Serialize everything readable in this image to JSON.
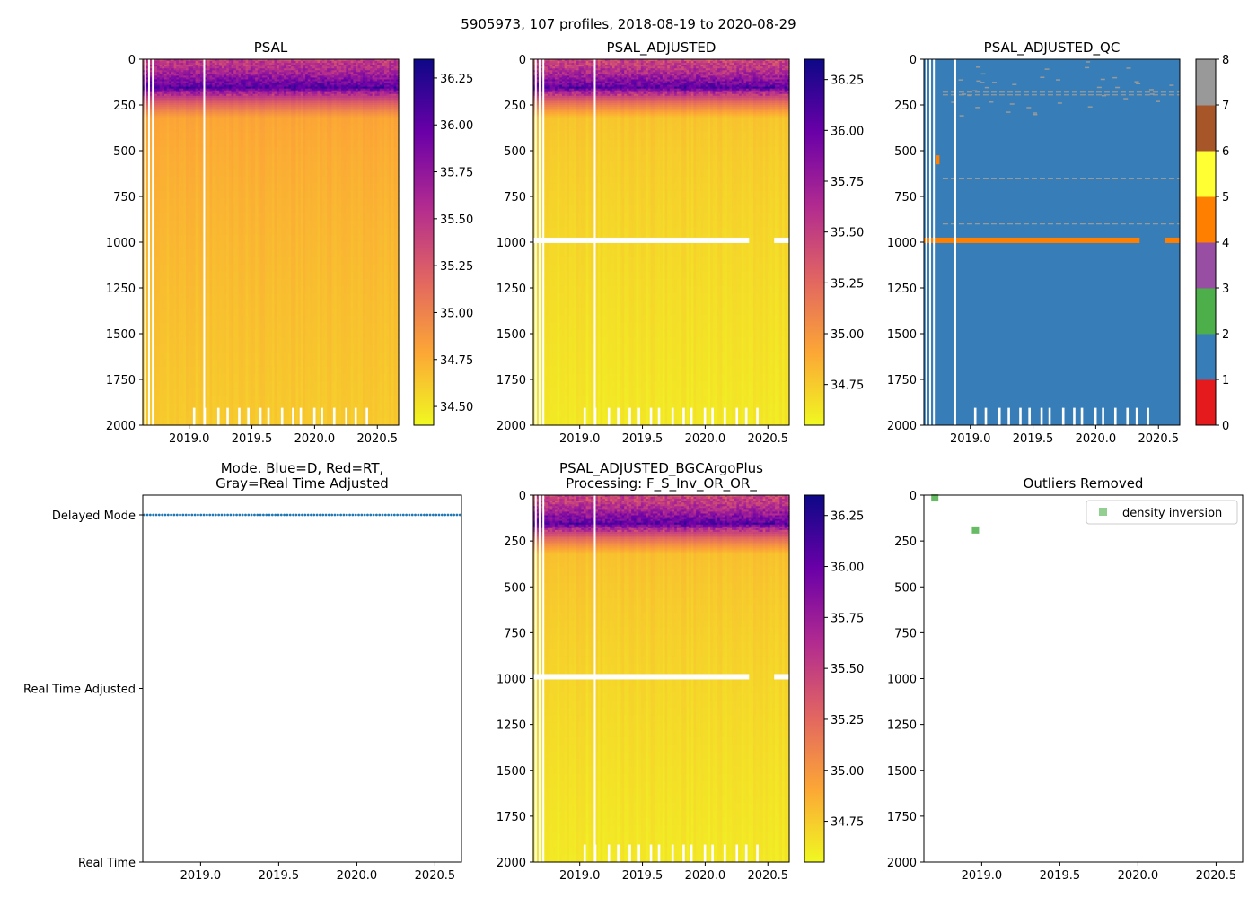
{
  "figure": {
    "suptitle": "5905973, 107 profiles, 2018-08-19 to 2020-08-29"
  },
  "colors": {
    "plasma_stops": [
      "#0d0887",
      "#6a00a8",
      "#b12a90",
      "#e16462",
      "#fca636",
      "#f0f921"
    ],
    "qc_colors": [
      "#e41a1c",
      "#377eb8",
      "#4daf4a",
      "#984ea3",
      "#ff7f00",
      "#ffff33",
      "#a65628",
      "#f781bf",
      "#999999"
    ],
    "mode_dots": "#1f77b4",
    "outlier_marker": "#4daf4a"
  },
  "chart_data": [
    {
      "id": "psal",
      "type": "heatmap",
      "title": "PSAL",
      "xlim": [
        2018.63,
        2020.67
      ],
      "ylim": [
        2000,
        0
      ],
      "xticks": [
        "2019.0",
        "2019.5",
        "2020.0",
        "2020.5"
      ],
      "xtick_values": [
        2019.0,
        2019.5,
        2020.0,
        2020.5
      ],
      "yticks": [
        "0",
        "250",
        "500",
        "750",
        "1000",
        "1250",
        "1500",
        "1750",
        "2000"
      ],
      "ytick_values": [
        0,
        250,
        500,
        750,
        1000,
        1250,
        1500,
        1750,
        2000
      ],
      "colorbar": {
        "cmap": "plasma_r",
        "range": [
          34.4,
          36.35
        ],
        "ticks": [
          "34.50",
          "34.75",
          "35.00",
          "35.25",
          "35.50",
          "35.75",
          "36.00",
          "36.25"
        ],
        "tick_values": [
          34.5,
          34.75,
          35.0,
          35.25,
          35.5,
          35.75,
          36.0,
          36.25
        ]
      },
      "profile": {
        "surface": 35.45,
        "maximum": 36.1,
        "max_depth": 160,
        "base": 34.8,
        "deep": 34.62
      },
      "gap_stripes": [
        2018.65,
        2018.68,
        2018.71,
        2019.12
      ],
      "white_band": null
    },
    {
      "id": "psal_adjusted",
      "type": "heatmap",
      "title": "PSAL_ADJUSTED",
      "xlim": [
        2018.63,
        2020.67
      ],
      "ylim": [
        2000,
        0
      ],
      "xticks": [
        "2019.0",
        "2019.5",
        "2020.0",
        "2020.5"
      ],
      "xtick_values": [
        2019.0,
        2019.5,
        2020.0,
        2020.5
      ],
      "yticks": [
        "0",
        "250",
        "500",
        "750",
        "1000",
        "1250",
        "1500",
        "1750",
        "2000"
      ],
      "ytick_values": [
        0,
        250,
        500,
        750,
        1000,
        1250,
        1500,
        1750,
        2000
      ],
      "colorbar": {
        "cmap": "plasma_r",
        "range": [
          34.55,
          36.35
        ],
        "ticks": [
          "34.75",
          "35.00",
          "35.25",
          "35.50",
          "35.75",
          "36.00",
          "36.25"
        ],
        "tick_values": [
          34.75,
          35.0,
          35.25,
          35.5,
          35.75,
          36.0,
          36.25
        ]
      },
      "profile": {
        "surface": 35.45,
        "maximum": 36.1,
        "max_depth": 160,
        "base": 34.78,
        "deep": 34.62
      },
      "gap_stripes": [
        2018.65,
        2018.68,
        2018.71,
        2019.12
      ],
      "white_band": {
        "depth": 990,
        "x_ranges": [
          [
            2018.63,
            2020.35
          ],
          [
            2020.55,
            2020.67
          ]
        ]
      }
    },
    {
      "id": "psal_adjusted_qc",
      "type": "heatmap",
      "title": "PSAL_ADJUSTED_QC",
      "xlim": [
        2018.63,
        2020.67
      ],
      "ylim": [
        2000,
        0
      ],
      "xticks": [
        "2019.0",
        "2019.5",
        "2020.0",
        "2020.5"
      ],
      "xtick_values": [
        2019.0,
        2019.5,
        2020.0,
        2020.5
      ],
      "yticks": [
        "0",
        "250",
        "500",
        "750",
        "1000",
        "1250",
        "1500",
        "1750",
        "2000"
      ],
      "ytick_values": [
        0,
        250,
        500,
        750,
        1000,
        1250,
        1500,
        1750,
        2000
      ],
      "colorbar": {
        "cmap": "qc",
        "range": [
          0,
          8
        ],
        "ticks": [
          "0",
          "1",
          "2",
          "3",
          "4",
          "5",
          "6",
          "7",
          "8"
        ],
        "tick_values": [
          0,
          1,
          2,
          3,
          4,
          5,
          6,
          7,
          8
        ]
      },
      "base_flag": 1,
      "flag4_band": {
        "depth": 990,
        "x_ranges": [
          [
            2018.63,
            2020.35
          ],
          [
            2020.55,
            2020.67
          ]
        ]
      },
      "flag4_spot": {
        "x": 2018.74,
        "depth": 550
      },
      "flag8_lines": [
        180,
        195,
        650,
        900
      ],
      "gap_stripes": [
        2018.65,
        2018.68,
        2018.71,
        2018.88
      ]
    },
    {
      "id": "mode",
      "type": "scatter",
      "title": "Mode. Blue=D, Red=RT,\nGray=Real Time Adjusted",
      "xlim": [
        2018.63,
        2020.67
      ],
      "xticks": [
        "2019.0",
        "2019.5",
        "2020.0",
        "2020.5"
      ],
      "xtick_values": [
        2019.0,
        2019.5,
        2020.0,
        2020.5
      ],
      "categories": [
        "Delayed Mode",
        "Real Time Adjusted",
        "Real Time"
      ],
      "series": [
        {
          "name": "D",
          "category": "Delayed Mode",
          "count": 107,
          "x_start": 2018.64,
          "x_end": 2020.66
        }
      ]
    },
    {
      "id": "psal_adjusted_bgc",
      "type": "heatmap",
      "title": "PSAL_ADJUSTED_BGCArgoPlus\nProcessing: F_S_Inv_OR_OR_",
      "xlim": [
        2018.63,
        2020.67
      ],
      "ylim": [
        2000,
        0
      ],
      "xticks": [
        "2019.0",
        "2019.5",
        "2020.0",
        "2020.5"
      ],
      "xtick_values": [
        2019.0,
        2019.5,
        2020.0,
        2020.5
      ],
      "yticks": [
        "0",
        "250",
        "500",
        "750",
        "1000",
        "1250",
        "1500",
        "1750",
        "2000"
      ],
      "ytick_values": [
        0,
        250,
        500,
        750,
        1000,
        1250,
        1500,
        1750,
        2000
      ],
      "colorbar": {
        "cmap": "plasma_r",
        "range": [
          34.55,
          36.35
        ],
        "ticks": [
          "34.75",
          "35.00",
          "35.25",
          "35.50",
          "35.75",
          "36.00",
          "36.25"
        ],
        "tick_values": [
          34.75,
          35.0,
          35.25,
          35.5,
          35.75,
          36.0,
          36.25
        ]
      },
      "profile": {
        "surface": 35.45,
        "maximum": 36.1,
        "max_depth": 160,
        "base": 34.8,
        "deep": 34.62
      },
      "gap_stripes": [
        2018.65,
        2018.68,
        2018.71,
        2019.12
      ],
      "white_band": {
        "depth": 990,
        "x_ranges": [
          [
            2018.63,
            2020.35
          ],
          [
            2020.55,
            2020.67
          ]
        ]
      }
    },
    {
      "id": "outliers",
      "type": "scatter",
      "title": "Outliers Removed",
      "xlim": [
        2018.63,
        2020.67
      ],
      "ylim": [
        2000,
        0
      ],
      "xticks": [
        "2019.0",
        "2019.5",
        "2020.0",
        "2020.5"
      ],
      "xtick_values": [
        2019.0,
        2019.5,
        2020.0,
        2020.5
      ],
      "yticks": [
        "0",
        "250",
        "500",
        "750",
        "1000",
        "1250",
        "1500",
        "1750",
        "2000"
      ],
      "ytick_values": [
        0,
        250,
        500,
        750,
        1000,
        1250,
        1500,
        1750,
        2000
      ],
      "legend": {
        "placement": "top-right",
        "entries": [
          "density inversion"
        ]
      },
      "series": [
        {
          "name": "density inversion",
          "points": [
            [
              2018.7,
              15
            ],
            [
              2018.96,
              190
            ]
          ]
        }
      ]
    }
  ]
}
